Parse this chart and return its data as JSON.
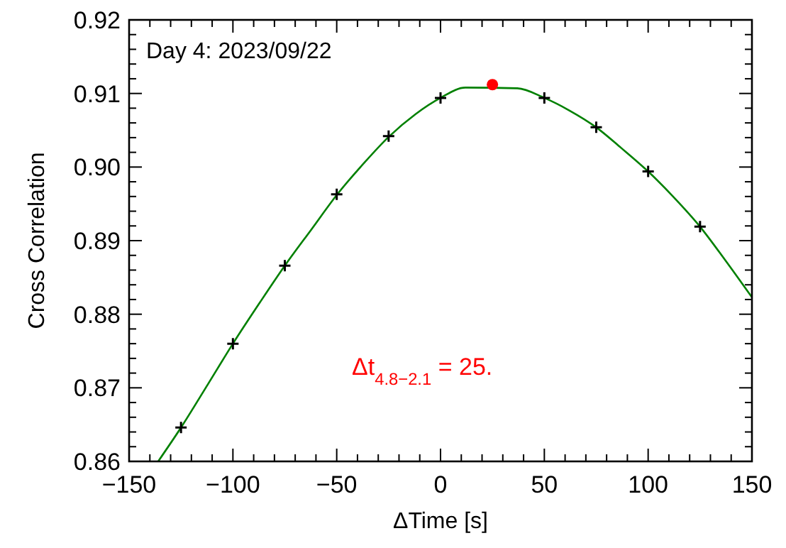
{
  "chart_data": {
    "type": "line",
    "title": "Day 4: 2023/09/22",
    "xlabel": "ΔTime [s]",
    "ylabel": "Cross Correlation",
    "annotations": [
      "Δt$_{4.8−2.1}$ = 25."
    ],
    "xlim": [
      -150,
      150
    ],
    "ylim": [
      0.86,
      0.92
    ],
    "xticks": [
      {
        "value": -150,
        "label": "−150"
      },
      {
        "value": -140,
        "label": null
      },
      {
        "value": -130,
        "label": null
      },
      {
        "value": -120,
        "label": null
      },
      {
        "value": -110,
        "label": null
      },
      {
        "value": -100,
        "label": "−100"
      },
      {
        "value": -90,
        "label": null
      },
      {
        "value": -80,
        "label": null
      },
      {
        "value": -70,
        "label": null
      },
      {
        "value": -60,
        "label": null
      },
      {
        "value": -50,
        "label": "−50"
      },
      {
        "value": -40,
        "label": null
      },
      {
        "value": -30,
        "label": null
      },
      {
        "value": -20,
        "label": null
      },
      {
        "value": -10,
        "label": null
      },
      {
        "value": 0,
        "label": "0"
      },
      {
        "value": 10,
        "label": null
      },
      {
        "value": 20,
        "label": null
      },
      {
        "value": 30,
        "label": null
      },
      {
        "value": 40,
        "label": null
      },
      {
        "value": 50,
        "label": "50"
      },
      {
        "value": 60,
        "label": null
      },
      {
        "value": 70,
        "label": null
      },
      {
        "value": 80,
        "label": null
      },
      {
        "value": 90,
        "label": null
      },
      {
        "value": 100,
        "label": "100"
      },
      {
        "value": 110,
        "label": null
      },
      {
        "value": 120,
        "label": null
      },
      {
        "value": 130,
        "label": null
      },
      {
        "value": 140,
        "label": null
      },
      {
        "value": 150,
        "label": "150"
      }
    ],
    "yticks": [
      {
        "value": 0.86,
        "label": "0.86"
      },
      {
        "value": 0.862,
        "label": null
      },
      {
        "value": 0.864,
        "label": null
      },
      {
        "value": 0.866,
        "label": null
      },
      {
        "value": 0.868,
        "label": null
      },
      {
        "value": 0.87,
        "label": "0.87"
      },
      {
        "value": 0.872,
        "label": null
      },
      {
        "value": 0.874,
        "label": null
      },
      {
        "value": 0.876,
        "label": null
      },
      {
        "value": 0.878,
        "label": null
      },
      {
        "value": 0.88,
        "label": "0.88"
      },
      {
        "value": 0.882,
        "label": null
      },
      {
        "value": 0.884,
        "label": null
      },
      {
        "value": 0.886,
        "label": null
      },
      {
        "value": 0.888,
        "label": null
      },
      {
        "value": 0.89,
        "label": "0.89"
      },
      {
        "value": 0.892,
        "label": null
      },
      {
        "value": 0.894,
        "label": null
      },
      {
        "value": 0.896,
        "label": null
      },
      {
        "value": 0.898,
        "label": null
      },
      {
        "value": 0.9,
        "label": "0.90"
      },
      {
        "value": 0.902,
        "label": null
      },
      {
        "value": 0.904,
        "label": null
      },
      {
        "value": 0.906,
        "label": null
      },
      {
        "value": 0.908,
        "label": null
      },
      {
        "value": 0.91,
        "label": "0.91"
      },
      {
        "value": 0.912,
        "label": null
      },
      {
        "value": 0.914,
        "label": null
      },
      {
        "value": 0.916,
        "label": null
      },
      {
        "value": 0.918,
        "label": null
      },
      {
        "value": 0.92,
        "label": "0.92"
      }
    ],
    "series": [
      {
        "color": "#008000",
        "marker": "none",
        "x": [
          -136,
          -125,
          -112,
          -100,
          -87,
          -75,
          -62,
          -50,
          -37,
          -25,
          -12,
          0,
          12,
          37,
          50,
          62,
          75,
          87,
          100,
          112,
          125,
          137,
          150
        ],
        "values": [
          0.86,
          0.8646,
          0.8705,
          0.876,
          0.8816,
          0.8866,
          0.8916,
          0.8962,
          0.9005,
          0.9041,
          0.9072,
          0.9094,
          0.9108,
          0.9107,
          0.9094,
          0.9077,
          0.9054,
          0.9026,
          0.8994,
          0.896,
          0.8919,
          0.8874,
          0.8823
        ]
      },
      {
        "type": "scatter",
        "color": "#000000",
        "marker": "cross",
        "x": [
          -125,
          -100,
          -75,
          -50,
          -25,
          0,
          50,
          75,
          100,
          125
        ],
        "values": [
          0.8646,
          0.876,
          0.8866,
          0.8963,
          0.9042,
          0.9094,
          0.9094,
          0.9054,
          0.8994,
          0.8919
        ]
      },
      {
        "type": "scatter",
        "color": "#ff0000",
        "marker": "circle",
        "x": [
          25
        ],
        "values": [
          0.9112
        ]
      }
    ]
  }
}
